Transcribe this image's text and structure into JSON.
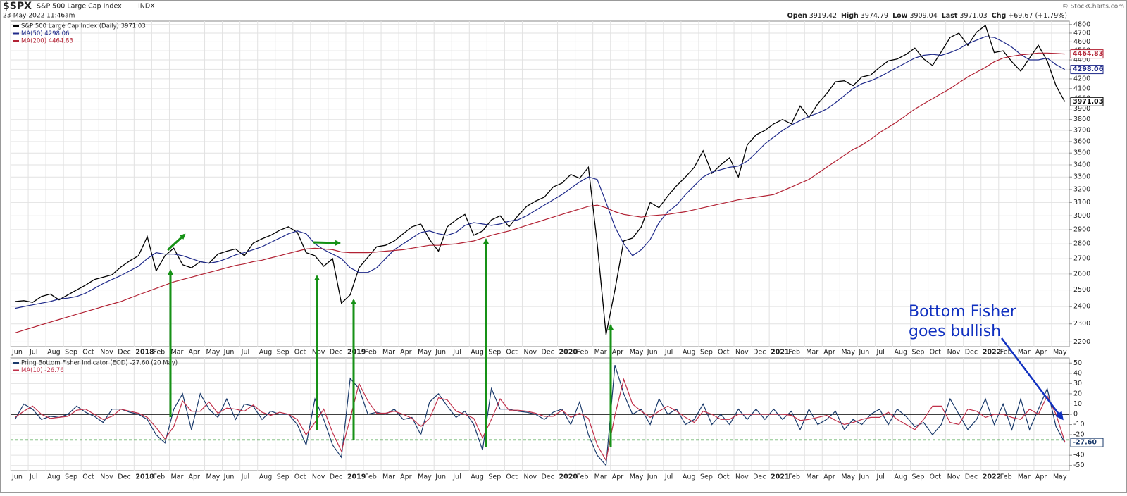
{
  "header": {
    "symbol": "$SPX",
    "name": "S&P 500 Large Cap Index",
    "exchange": "INDX",
    "date": "23-May-2022 11:46am",
    "quote": [
      [
        "Open",
        "3919.42"
      ],
      [
        "High",
        "3974.79"
      ],
      [
        "Low",
        "3909.04"
      ],
      [
        "Last",
        "3971.03"
      ],
      [
        "Chg",
        "+69.67 (+1.79%)"
      ]
    ],
    "credit": "© StockCharts.com"
  },
  "chart_data": [
    {
      "type": "line",
      "log_scale": true,
      "grid": true,
      "categories": [
        "Jun",
        null,
        "Jul",
        null,
        "Aug",
        null,
        "Sep",
        null,
        "Oct",
        null,
        "Nov",
        null,
        "Dec",
        null,
        "2018",
        null,
        "Feb",
        null,
        "Mar",
        null,
        "Apr",
        null,
        "May",
        null,
        "Jun",
        null,
        "Jul",
        null,
        "Aug",
        null,
        "Sep",
        null,
        "Oct",
        null,
        "Nov",
        null,
        "Dec",
        null,
        "2019",
        null,
        "Feb",
        null,
        "Mar",
        null,
        "Apr",
        null,
        "May",
        null,
        "Jun",
        null,
        "Jul",
        null,
        "Aug",
        null,
        "Sep",
        null,
        "Oct",
        null,
        "Nov",
        null,
        "Dec",
        null,
        "2020",
        null,
        "Feb",
        null,
        "Mar",
        null,
        "Apr",
        null,
        "May",
        null,
        "Jun",
        null,
        "Jul",
        null,
        "Aug",
        null,
        "Sep",
        null,
        "Oct",
        null,
        "Nov",
        null,
        "Dec",
        null,
        "2021",
        null,
        "Feb",
        null,
        "Mar",
        null,
        "Apr",
        null,
        "May",
        null,
        "Jun",
        null,
        "Jul",
        null,
        "Aug",
        null,
        "Sep",
        null,
        "Oct",
        null,
        "Nov",
        null,
        "Dec",
        null,
        "2022",
        null,
        "Feb",
        null,
        "Mar",
        null,
        "Apr",
        null,
        "May",
        null
      ],
      "series": [
        {
          "name": "S&P 500 Large Cap Index (Daily) 3971.03",
          "color": "#000000",
          "last_label": "3971.03",
          "values": [
            2430,
            2435,
            2425,
            2460,
            2475,
            2440,
            2470,
            2500,
            2530,
            2565,
            2580,
            2595,
            2645,
            2685,
            2720,
            2850,
            2620,
            2720,
            2770,
            2660,
            2640,
            2680,
            2670,
            2730,
            2750,
            2765,
            2720,
            2805,
            2835,
            2860,
            2895,
            2920,
            2880,
            2740,
            2720,
            2650,
            2700,
            2420,
            2470,
            2640,
            2710,
            2780,
            2790,
            2820,
            2870,
            2920,
            2940,
            2830,
            2750,
            2920,
            2970,
            3010,
            2860,
            2890,
            2970,
            3000,
            2920,
            3000,
            3070,
            3110,
            3140,
            3220,
            3250,
            3320,
            3290,
            3380,
            2800,
            2240,
            2500,
            2820,
            2840,
            2920,
            3100,
            3060,
            3150,
            3230,
            3300,
            3380,
            3520,
            3330,
            3400,
            3460,
            3300,
            3570,
            3660,
            3700,
            3760,
            3800,
            3760,
            3930,
            3820,
            3950,
            4050,
            4170,
            4180,
            4130,
            4220,
            4240,
            4320,
            4390,
            4410,
            4460,
            4530,
            4410,
            4340,
            4490,
            4650,
            4700,
            4560,
            4710,
            4790,
            4480,
            4500,
            4380,
            4280,
            4420,
            4560,
            4390,
            4130,
            3971.03
          ]
        },
        {
          "name": "MA(50) 4298.06",
          "color": "#1f2a8a",
          "last_label": "4298.06",
          "values": [
            2390,
            2400,
            2410,
            2420,
            2430,
            2445,
            2450,
            2460,
            2480,
            2510,
            2540,
            2565,
            2590,
            2620,
            2650,
            2700,
            2740,
            2730,
            2730,
            2720,
            2700,
            2680,
            2670,
            2680,
            2700,
            2725,
            2740,
            2760,
            2780,
            2810,
            2840,
            2870,
            2890,
            2870,
            2800,
            2760,
            2730,
            2700,
            2640,
            2610,
            2610,
            2640,
            2700,
            2760,
            2800,
            2840,
            2880,
            2890,
            2870,
            2860,
            2880,
            2930,
            2950,
            2940,
            2930,
            2940,
            2960,
            2970,
            3000,
            3040,
            3080,
            3120,
            3160,
            3210,
            3260,
            3300,
            3280,
            3100,
            2920,
            2800,
            2720,
            2760,
            2830,
            2950,
            3030,
            3080,
            3160,
            3230,
            3300,
            3340,
            3360,
            3380,
            3390,
            3430,
            3500,
            3580,
            3640,
            3700,
            3750,
            3790,
            3830,
            3860,
            3900,
            3960,
            4030,
            4100,
            4150,
            4180,
            4220,
            4270,
            4320,
            4370,
            4420,
            4450,
            4460,
            4450,
            4480,
            4520,
            4580,
            4620,
            4660,
            4650,
            4600,
            4540,
            4460,
            4400,
            4400,
            4420,
            4350,
            4298.06
          ]
        },
        {
          "name": "MA(200) 4464.83",
          "color": "#b22234",
          "last_label": "4464.83",
          "values": [
            2250,
            2265,
            2280,
            2295,
            2310,
            2325,
            2340,
            2355,
            2370,
            2385,
            2400,
            2415,
            2430,
            2450,
            2470,
            2490,
            2510,
            2530,
            2550,
            2565,
            2580,
            2595,
            2610,
            2625,
            2640,
            2655,
            2665,
            2680,
            2690,
            2705,
            2720,
            2735,
            2750,
            2765,
            2770,
            2765,
            2760,
            2745,
            2740,
            2740,
            2740,
            2745,
            2750,
            2755,
            2760,
            2770,
            2780,
            2790,
            2790,
            2795,
            2800,
            2810,
            2820,
            2840,
            2860,
            2875,
            2890,
            2910,
            2930,
            2950,
            2970,
            2990,
            3010,
            3030,
            3050,
            3070,
            3080,
            3060,
            3030,
            3010,
            3000,
            2990,
            3000,
            3005,
            3010,
            3020,
            3030,
            3045,
            3060,
            3075,
            3090,
            3105,
            3120,
            3130,
            3140,
            3150,
            3160,
            3190,
            3220,
            3250,
            3280,
            3330,
            3380,
            3430,
            3480,
            3530,
            3570,
            3620,
            3680,
            3730,
            3780,
            3840,
            3900,
            3950,
            4000,
            4050,
            4100,
            4160,
            4220,
            4270,
            4320,
            4380,
            4420,
            4440,
            4455,
            4465,
            4475,
            4475,
            4470,
            4464.83
          ]
        }
      ],
      "ylim": [
        2175,
        4840
      ],
      "yticks": [
        2200,
        2300,
        2400,
        2500,
        2600,
        2700,
        2800,
        2900,
        3000,
        3100,
        3200,
        3300,
        3400,
        3500,
        3600,
        3700,
        3800,
        3900,
        4000,
        4100,
        4200,
        4300,
        4400,
        4500,
        4600,
        4700,
        4800
      ]
    },
    {
      "type": "line",
      "grid": true,
      "categories": [
        "Jun",
        null,
        "Jul",
        null,
        "Aug",
        null,
        "Sep",
        null,
        "Oct",
        null,
        "Nov",
        null,
        "Dec",
        null,
        "2018",
        null,
        "Feb",
        null,
        "Mar",
        null,
        "Apr",
        null,
        "May",
        null,
        "Jun",
        null,
        "Jul",
        null,
        "Aug",
        null,
        "Sep",
        null,
        "Oct",
        null,
        "Nov",
        null,
        "Dec",
        null,
        "2019",
        null,
        "Feb",
        null,
        "Mar",
        null,
        "Apr",
        null,
        "May",
        null,
        "Jun",
        null,
        "Jul",
        null,
        "Aug",
        null,
        "Sep",
        null,
        "Oct",
        null,
        "Nov",
        null,
        "Dec",
        null,
        "2020",
        null,
        "Feb",
        null,
        "Mar",
        null,
        "Apr",
        null,
        "May",
        null,
        "Jun",
        null,
        "Jul",
        null,
        "Aug",
        null,
        "Sep",
        null,
        "Oct",
        null,
        "Nov",
        null,
        "Dec",
        null,
        "2021",
        null,
        "Feb",
        null,
        "Mar",
        null,
        "Apr",
        null,
        "May",
        null,
        "Jun",
        null,
        "Jul",
        null,
        "Aug",
        null,
        "Sep",
        null,
        "Oct",
        null,
        "Nov",
        null,
        "Dec",
        null,
        "2022",
        null,
        "Feb",
        null,
        "Mar",
        null,
        "Apr",
        null,
        "May",
        null
      ],
      "series": [
        {
          "name": "Pring Bottom Fisher Indicator (EOD) -27.60 (20 May)",
          "color": "#1a3a6b",
          "last_label": "-27.60",
          "values": [
            -5,
            10,
            5,
            -5,
            -2,
            -3,
            0,
            8,
            2,
            -2,
            -8,
            5,
            5,
            2,
            0,
            -5,
            -20,
            -28,
            5,
            20,
            -15,
            20,
            5,
            -3,
            15,
            -5,
            10,
            8,
            -5,
            3,
            0,
            0,
            -10,
            -30,
            15,
            -5,
            -30,
            -42,
            35,
            25,
            0,
            2,
            0,
            5,
            -5,
            -3,
            -20,
            12,
            20,
            8,
            -3,
            3,
            -10,
            -35,
            25,
            5,
            5,
            3,
            2,
            0,
            -5,
            2,
            5,
            -10,
            12,
            -20,
            -40,
            -50,
            48,
            20,
            0,
            5,
            -10,
            15,
            0,
            5,
            -10,
            -5,
            10,
            -10,
            0,
            -10,
            5,
            -5,
            5,
            -5,
            5,
            -5,
            3,
            -15,
            5,
            -10,
            -5,
            3,
            -15,
            -5,
            -10,
            0,
            5,
            -10,
            5,
            -2,
            -12,
            -8,
            -20,
            -10,
            15,
            0,
            -15,
            -5,
            15,
            -10,
            10,
            -15,
            15,
            -15,
            5,
            25,
            -12,
            -27.6
          ]
        },
        {
          "name": "MA(10) -26.76",
          "color": "#c0304a",
          "values": [
            -3,
            3,
            8,
            0,
            -4,
            -3,
            -2,
            4,
            5,
            0,
            -5,
            -2,
            5,
            3,
            1,
            -3,
            -13,
            -24,
            -12,
            13,
            3,
            3,
            12,
            1,
            6,
            5,
            3,
            9,
            2,
            -1,
            2,
            0,
            -5,
            -20,
            -8,
            5,
            -18,
            -36,
            -4,
            30,
            13,
            1,
            1,
            3,
            0,
            -4,
            -12,
            -4,
            16,
            14,
            3,
            0,
            -4,
            -23,
            -5,
            15,
            4,
            4,
            3,
            1,
            -2,
            -2,
            4,
            -3,
            1,
            -4,
            -30,
            -45,
            -1,
            34,
            10,
            3,
            -3,
            3,
            8,
            3,
            -3,
            -8,
            3,
            0,
            -5,
            -5,
            0,
            0,
            0,
            0,
            0,
            0,
            -1,
            -6,
            -5,
            -3,
            -1,
            -6,
            -10,
            -8,
            -5,
            -3,
            -3,
            2,
            -5,
            -10,
            -15,
            -5,
            8,
            8,
            -8,
            -10,
            5,
            3,
            -3,
            0,
            0,
            -3,
            -5,
            5,
            0,
            18,
            0,
            -26.76
          ]
        }
      ],
      "ylim": [
        -55,
        55
      ],
      "yticks": [
        -50,
        -40,
        -30,
        -20,
        -10,
        0,
        10,
        20,
        30,
        40,
        50
      ],
      "ref_lines": [
        {
          "value": 0,
          "color": "#000000"
        },
        {
          "value": -25,
          "color": "#1a8a1a",
          "dash": true
        }
      ],
      "annotation": [
        "Bottom Fisher",
        "goes bullish"
      ]
    }
  ]
}
